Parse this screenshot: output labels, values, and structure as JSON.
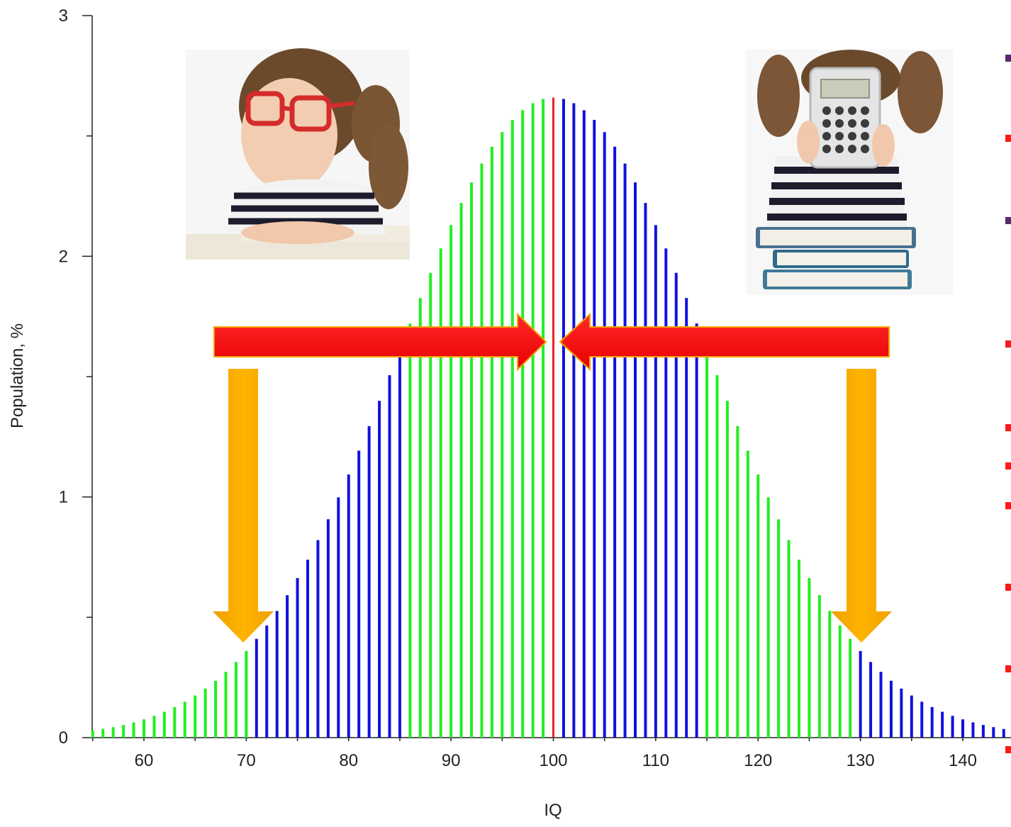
{
  "chart_data": {
    "type": "bar",
    "xlabel": "IQ",
    "ylabel": "Population, %",
    "xlim": [
      55,
      145
    ],
    "ylim": [
      0,
      3
    ],
    "x_ticks": [
      60,
      70,
      80,
      90,
      100,
      110,
      120,
      130,
      140
    ],
    "y_ticks": [
      0,
      1,
      2,
      3
    ],
    "grid": false,
    "distribution": {
      "mean": 100,
      "sd": 15
    },
    "bands": [
      {
        "from": 55,
        "to": 70,
        "color": "#22ee22"
      },
      {
        "from": 71,
        "to": 85,
        "color": "#1111dd"
      },
      {
        "from": 86,
        "to": 99,
        "color": "#22ee22"
      },
      {
        "from": 100,
        "to": 100,
        "color": "#ee2222"
      },
      {
        "from": 101,
        "to": 114,
        "color": "#1111dd"
      },
      {
        "from": 115,
        "to": 129,
        "color": "#22ee22"
      },
      {
        "from": 130,
        "to": 145,
        "color": "#1111dd"
      }
    ],
    "annotations": {
      "horizontal_arrows_color": "#ff0000",
      "vertical_arrows_color": "#f5a800",
      "left_photo": "child-with-red-glasses-photo",
      "right_photo": "child-with-calculator-photo"
    }
  },
  "x": [
    55,
    56,
    57,
    58,
    59,
    60,
    61,
    62,
    63,
    64,
    65,
    66,
    67,
    68,
    69,
    70,
    71,
    72,
    73,
    74,
    75,
    76,
    77,
    78,
    79,
    80,
    81,
    82,
    83,
    84,
    85,
    86,
    87,
    88,
    89,
    90,
    91,
    92,
    93,
    94,
    95,
    96,
    97,
    98,
    99,
    100,
    101,
    102,
    103,
    104,
    105,
    106,
    107,
    108,
    109,
    110,
    111,
    112,
    113,
    114,
    115,
    116,
    117,
    118,
    119,
    120,
    121,
    122,
    123,
    124,
    125,
    126,
    127,
    128,
    129,
    130,
    131,
    132,
    133,
    134,
    135,
    136,
    137,
    138,
    139,
    140,
    141,
    142,
    143,
    144,
    145
  ]
}
